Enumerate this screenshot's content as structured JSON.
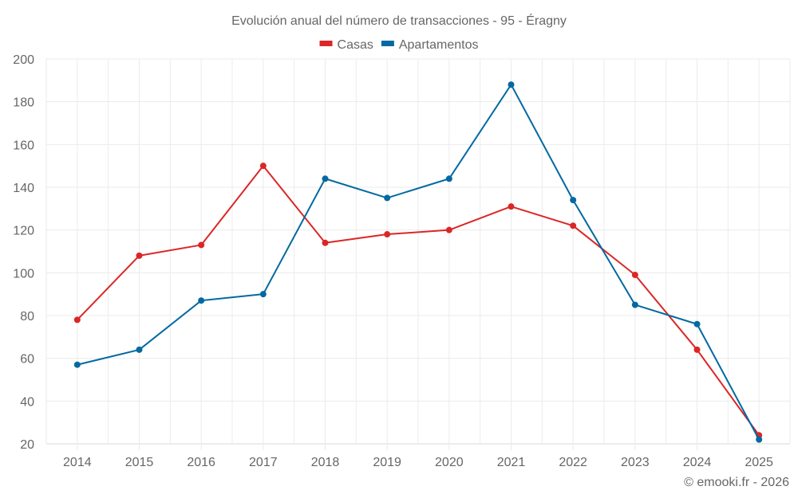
{
  "chart_data": {
    "type": "line",
    "title": "Evolución anual del número de transacciones - 95 - Éragny",
    "xlabel": "",
    "ylabel": "",
    "categories": [
      "2014",
      "2015",
      "2016",
      "2017",
      "2018",
      "2019",
      "2020",
      "2021",
      "2022",
      "2023",
      "2024",
      "2025"
    ],
    "series": [
      {
        "name": "Casas",
        "color": "#dc2626",
        "values": [
          78,
          108,
          113,
          150,
          114,
          118,
          120,
          131,
          122,
          99,
          64,
          24
        ]
      },
      {
        "name": "Apartamentos",
        "color": "#0369a1",
        "values": [
          57,
          64,
          87,
          90,
          144,
          135,
          144,
          188,
          134,
          85,
          76,
          22
        ]
      }
    ],
    "ylim": [
      20,
      200
    ],
    "yticks": [
      20,
      40,
      60,
      80,
      100,
      120,
      140,
      160,
      180,
      200
    ],
    "grid": true,
    "legend_position": "top-center",
    "credit": "© emooki.fr - 2026"
  }
}
